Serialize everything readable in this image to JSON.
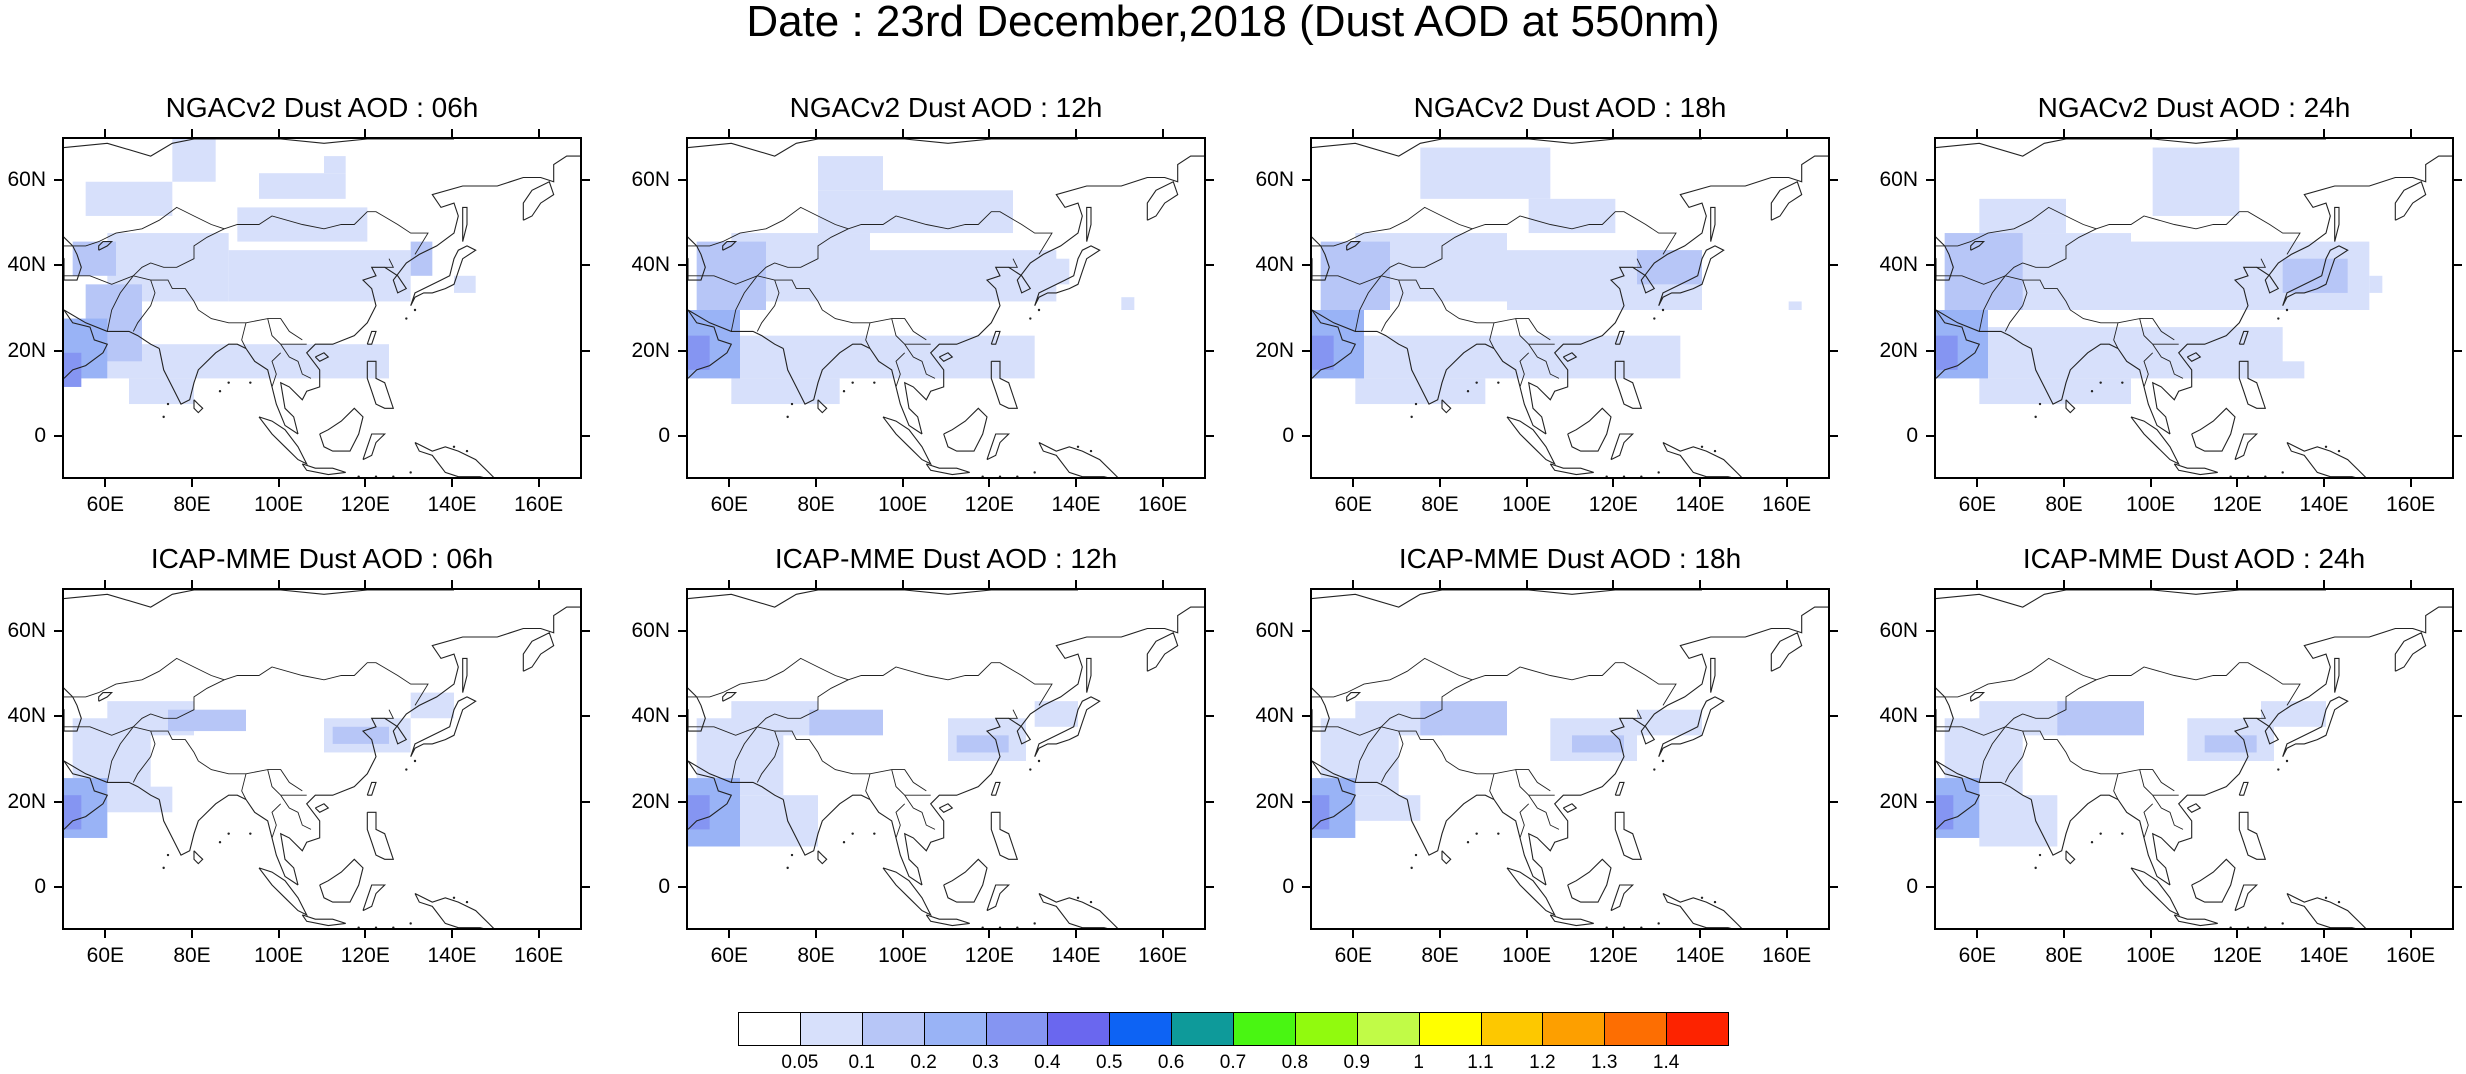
{
  "title": "Date : 23rd December,2018 (Dust AOD at 550nm)",
  "map_extent": {
    "lon": [
      50,
      170
    ],
    "lat": [
      -10,
      70
    ]
  },
  "y_ticks": [
    {
      "value": 60,
      "label": "60N"
    },
    {
      "value": 40,
      "label": "40N"
    },
    {
      "value": 20,
      "label": "20N"
    },
    {
      "value": 0,
      "label": "0"
    }
  ],
  "x_ticks": [
    {
      "value": 60,
      "label": "60E"
    },
    {
      "value": 80,
      "label": "80E"
    },
    {
      "value": 100,
      "label": "100E"
    },
    {
      "value": 120,
      "label": "120E"
    },
    {
      "value": 140,
      "label": "140E"
    },
    {
      "value": 160,
      "label": "160E"
    }
  ],
  "panels": [
    {
      "title": "NGACv2 Dust AOD : 06h",
      "field": [
        [
          52,
          62,
          38,
          46,
          0.2
        ],
        [
          55,
          68,
          18,
          36,
          0.2
        ],
        [
          50,
          60,
          14,
          28,
          0.3
        ],
        [
          50,
          54,
          12,
          20,
          0.4
        ],
        [
          60,
          88,
          32,
          48,
          0.1
        ],
        [
          88,
          130,
          32,
          44,
          0.1
        ],
        [
          90,
          120,
          46,
          54,
          0.1
        ],
        [
          55,
          75,
          52,
          60,
          0.1
        ],
        [
          95,
          115,
          56,
          62,
          0.1
        ],
        [
          60,
          125,
          14,
          22,
          0.1
        ],
        [
          65,
          80,
          8,
          14,
          0.1
        ],
        [
          130,
          135,
          38,
          46,
          0.2
        ],
        [
          140,
          145,
          34,
          38,
          0.1
        ],
        [
          75,
          85,
          60,
          70,
          0.1
        ],
        [
          110,
          115,
          62,
          66,
          0.1
        ]
      ]
    },
    {
      "title": "NGACv2 Dust AOD : 12h",
      "field": [
        [
          50,
          62,
          14,
          30,
          0.3
        ],
        [
          50,
          55,
          16,
          24,
          0.4
        ],
        [
          52,
          68,
          30,
          46,
          0.2
        ],
        [
          60,
          92,
          32,
          48,
          0.1
        ],
        [
          92,
          135,
          32,
          44,
          0.1
        ],
        [
          80,
          125,
          48,
          58,
          0.1
        ],
        [
          80,
          95,
          58,
          66,
          0.1
        ],
        [
          60,
          130,
          14,
          24,
          0.1
        ],
        [
          60,
          85,
          8,
          14,
          0.1
        ],
        [
          128,
          138,
          36,
          42,
          0.1
        ],
        [
          150,
          153,
          30,
          33,
          0.1
        ]
      ]
    },
    {
      "title": "NGACv2 Dust AOD : 18h",
      "field": [
        [
          50,
          62,
          14,
          30,
          0.3
        ],
        [
          50,
          55,
          16,
          24,
          0.4
        ],
        [
          52,
          68,
          30,
          46,
          0.2
        ],
        [
          60,
          95,
          32,
          48,
          0.1
        ],
        [
          95,
          140,
          30,
          44,
          0.1
        ],
        [
          75,
          105,
          56,
          68,
          0.1
        ],
        [
          100,
          120,
          48,
          56,
          0.1
        ],
        [
          60,
          135,
          14,
          24,
          0.1
        ],
        [
          60,
          90,
          8,
          14,
          0.1
        ],
        [
          125,
          140,
          36,
          44,
          0.2
        ],
        [
          110,
          124,
          18,
          20,
          0.1
        ],
        [
          160,
          163,
          30,
          32,
          0.1
        ]
      ]
    },
    {
      "title": "NGACv2 Dust AOD : 24h",
      "field": [
        [
          50,
          62,
          14,
          30,
          0.3
        ],
        [
          50,
          55,
          16,
          24,
          0.4
        ],
        [
          52,
          70,
          30,
          48,
          0.2
        ],
        [
          60,
          95,
          30,
          48,
          0.1
        ],
        [
          95,
          150,
          30,
          46,
          0.1
        ],
        [
          100,
          120,
          52,
          68,
          0.1
        ],
        [
          60,
          80,
          48,
          56,
          0.1
        ],
        [
          60,
          130,
          14,
          26,
          0.1
        ],
        [
          60,
          95,
          8,
          14,
          0.1
        ],
        [
          130,
          145,
          34,
          42,
          0.2
        ],
        [
          150,
          153,
          34,
          38,
          0.1
        ],
        [
          118,
          135,
          14,
          18,
          0.1
        ]
      ]
    },
    {
      "title": "ICAP-MME Dust AOD : 06h",
      "field": [
        [
          50,
          60,
          12,
          26,
          0.3
        ],
        [
          50,
          54,
          14,
          22,
          0.4
        ],
        [
          52,
          70,
          22,
          40,
          0.1
        ],
        [
          60,
          80,
          36,
          44,
          0.1
        ],
        [
          74,
          92,
          37,
          42,
          0.2
        ],
        [
          110,
          130,
          32,
          40,
          0.1
        ],
        [
          112,
          125,
          34,
          38,
          0.2
        ],
        [
          130,
          140,
          40,
          46,
          0.1
        ],
        [
          60,
          75,
          18,
          24,
          0.1
        ]
      ]
    },
    {
      "title": "ICAP-MME Dust AOD : 12h",
      "field": [
        [
          50,
          62,
          10,
          26,
          0.3
        ],
        [
          50,
          55,
          14,
          22,
          0.4
        ],
        [
          52,
          72,
          22,
          40,
          0.1
        ],
        [
          60,
          80,
          36,
          44,
          0.1
        ],
        [
          78,
          95,
          36,
          42,
          0.2
        ],
        [
          110,
          128,
          30,
          40,
          0.1
        ],
        [
          112,
          124,
          32,
          36,
          0.2
        ],
        [
          130,
          140,
          38,
          44,
          0.1
        ],
        [
          60,
          80,
          10,
          22,
          0.1
        ]
      ]
    },
    {
      "title": "ICAP-MME Dust AOD : 18h",
      "field": [
        [
          50,
          60,
          12,
          26,
          0.3
        ],
        [
          50,
          54,
          14,
          22,
          0.4
        ],
        [
          52,
          70,
          22,
          40,
          0.1
        ],
        [
          60,
          80,
          36,
          44,
          0.1
        ],
        [
          75,
          95,
          36,
          44,
          0.2
        ],
        [
          105,
          125,
          30,
          40,
          0.1
        ],
        [
          110,
          122,
          32,
          36,
          0.2
        ],
        [
          125,
          140,
          36,
          42,
          0.1
        ],
        [
          60,
          75,
          16,
          22,
          0.1
        ]
      ]
    },
    {
      "title": "ICAP-MME Dust AOD : 24h",
      "field": [
        [
          50,
          60,
          12,
          26,
          0.3
        ],
        [
          50,
          54,
          14,
          22,
          0.4
        ],
        [
          52,
          70,
          22,
          40,
          0.1
        ],
        [
          60,
          80,
          36,
          44,
          0.1
        ],
        [
          78,
          98,
          36,
          44,
          0.2
        ],
        [
          108,
          128,
          30,
          40,
          0.1
        ],
        [
          112,
          124,
          32,
          36,
          0.2
        ],
        [
          125,
          140,
          38,
          44,
          0.1
        ],
        [
          60,
          78,
          10,
          22,
          0.1
        ]
      ]
    }
  ],
  "colorbar": {
    "colors": [
      "#ffffff",
      "#d7e0fb",
      "#b7c6f7",
      "#99b3f6",
      "#8595f2",
      "#6a67ef",
      "#0d63f4",
      "#0e9a9a",
      "#49f612",
      "#91fa0e",
      "#c1fb47",
      "#ffff00",
      "#fdc800",
      "#fd9f00",
      "#fd6e02",
      "#fd2300"
    ],
    "labels": [
      "0.05",
      "0.1",
      "0.2",
      "0.3",
      "0.4",
      "0.5",
      "0.6",
      "0.7",
      "0.8",
      "0.9",
      "1",
      "1.1",
      "1.2",
      "1.3",
      "1.4"
    ]
  }
}
